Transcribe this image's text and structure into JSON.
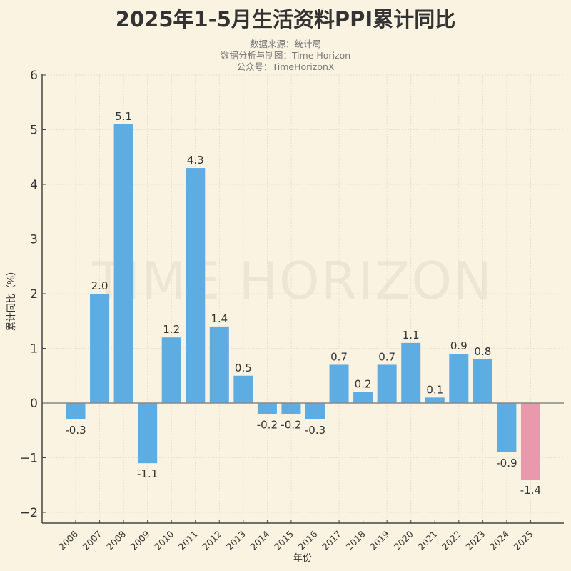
{
  "chart_data": {
    "type": "bar",
    "title": "2025年1-5月生活资料PPI累计同比",
    "subtitles": [
      "数据来源：统计局",
      "数据分析与制图：Time Horizon",
      "公众号：TimeHorizonX"
    ],
    "watermark": "TIME HORIZON",
    "xlabel": "年份",
    "ylabel": "累计同比（%）",
    "categories": [
      "2006",
      "2007",
      "2008",
      "2009",
      "2010",
      "2011",
      "2012",
      "2013",
      "2014",
      "2015",
      "2016",
      "2017",
      "2018",
      "2019",
      "2020",
      "2021",
      "2022",
      "2023",
      "2024",
      "2025"
    ],
    "values": [
      -0.3,
      2.0,
      5.1,
      -1.1,
      1.2,
      4.3,
      1.4,
      0.5,
      -0.2,
      -0.2,
      -0.3,
      0.7,
      0.2,
      0.7,
      1.1,
      0.1,
      0.9,
      0.8,
      -0.9,
      -1.4
    ],
    "data_labels": [
      "-0.3",
      "2.0",
      "5.1",
      "-1.1",
      "1.2",
      "4.3",
      "1.4",
      "0.5",
      "-0.2",
      "-0.2",
      "-0.3",
      "0.7",
      "0.2",
      "0.7",
      "1.1",
      "0.1",
      "0.9",
      "0.8",
      "-0.9",
      "-1.4"
    ],
    "ylim": [
      -2.2,
      6
    ],
    "yticks": [
      -2,
      -1,
      0,
      1,
      2,
      3,
      4,
      5,
      6
    ],
    "ytick_labels": [
      "−2",
      "−1",
      "0",
      "1",
      "2",
      "3",
      "4",
      "5",
      "6"
    ],
    "grid": true,
    "colors": {
      "bar": "#5dade2",
      "highlight": "#e89aac",
      "highlight_category": "2025",
      "background": "#faf3e1"
    }
  }
}
